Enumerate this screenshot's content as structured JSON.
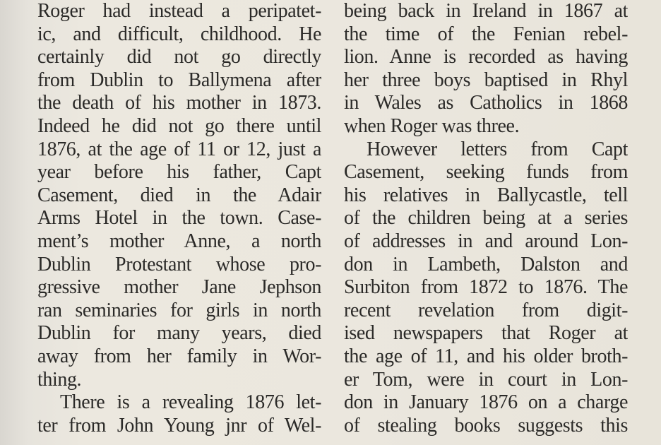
{
  "columns": [
    {
      "lines": [
        "Roger had instead a peripatet-",
        "ic, and difficult, childhood. He",
        "certainly did not go directly",
        "from Dublin to Ballymena after",
        "the death of his mother in 1873.",
        "Indeed he did not go there until",
        "1876, at the age of 11 or 12, just a",
        "year before his father, Capt",
        "Casement, died in the Adair",
        "Arms Hotel in the town. Case-",
        "ment’s mother Anne, a north",
        "Dublin Protestant whose pro-",
        "gressive mother Jane Jephson",
        "ran seminaries for girls in north",
        "Dublin for many years, died",
        "away from her family in Wor-",
        "thing.",
        "There is a revealing 1876 let-",
        "ter from John Young jnr of Wel-"
      ]
    },
    {
      "lines": [
        "being back in Ireland in 1867 at",
        "the time of the Fenian rebel-",
        "lion. Anne is recorded as having",
        "her three boys baptised in Rhyl",
        "in Wales as Catholics in 1868",
        "when Roger was three.",
        "However letters from Capt",
        "Casement, seeking funds from",
        "his relatives in Ballycastle, tell",
        "of the children being at a series",
        "of addresses in and around Lon-",
        "don in Lambeth, Dalston and",
        "Surbiton from 1872 to 1876. The",
        "recent revelation from digit-",
        "ised newspapers that Roger at",
        "the age of 11, and his older broth-",
        "er Tom, were in court in Lon-",
        "don in January 1876 on a charge",
        "of stealing books suggests this"
      ]
    }
  ]
}
